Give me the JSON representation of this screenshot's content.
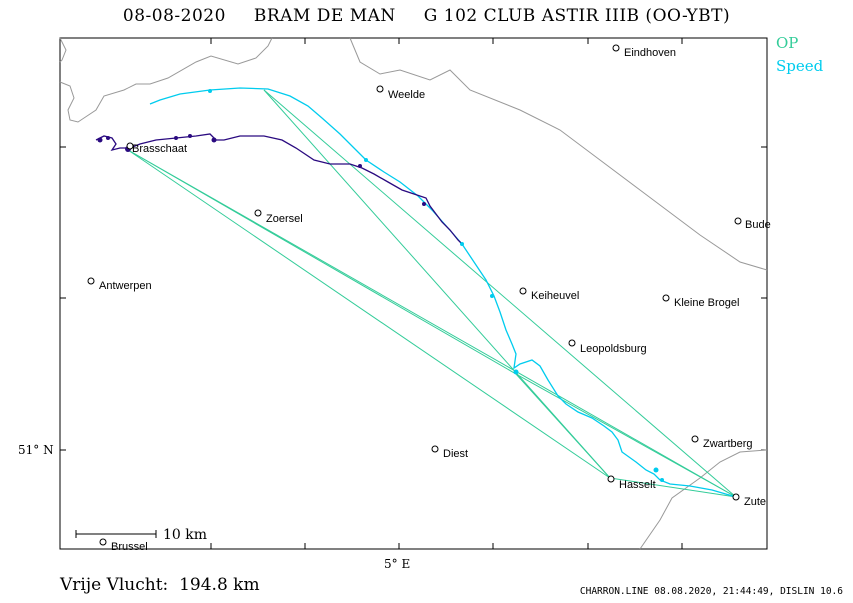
{
  "header": {
    "date": "08-08-2020",
    "pilot": "BRAM DE MAN",
    "glider": "G 102 CLUB ASTIR IIIB (OO-YBT)"
  },
  "legend": {
    "op_label": "OP",
    "speed_label": "Speed",
    "op_color": "#33cc99",
    "speed_color": "#00ccee",
    "track_color": "#2a0a80"
  },
  "map": {
    "axis": {
      "lat_label": "51° N",
      "lon_label": "5° E"
    },
    "places": [
      {
        "name": "Eindhoven"
      },
      {
        "name": "Weelde"
      },
      {
        "name": "Brasschaat"
      },
      {
        "name": "Zoersel"
      },
      {
        "name": "Antwerpen"
      },
      {
        "name": "Keiheuvel"
      },
      {
        "name": "Kleine Brogel"
      },
      {
        "name": "Leopoldsburg"
      },
      {
        "name": "Bude"
      },
      {
        "name": "Zwartberg"
      },
      {
        "name": "Diest"
      },
      {
        "name": "Hasselt"
      },
      {
        "name": "Zute"
      },
      {
        "name": "Brussel"
      }
    ],
    "scale_label": "10  km"
  },
  "summary": {
    "distance_label": "Vrije Vlucht:",
    "distance_value": "194.8 km"
  },
  "footer": {
    "credit": "CHARRON.LINE 08.08.2020, 21:44:49, DISLIN 10.6"
  }
}
